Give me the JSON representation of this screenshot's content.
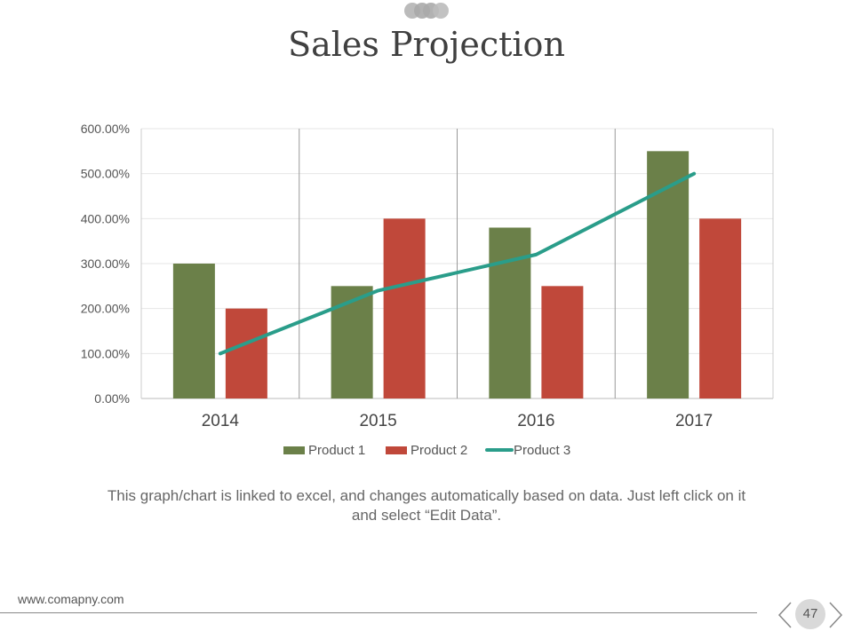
{
  "title": "Sales Projection",
  "caption": "This graph/chart is linked to excel, and changes automatically based on data. Just left click on it and select “Edit Data”.",
  "footer": {
    "url": "www.comapny.com",
    "page_number": "47"
  },
  "colors": {
    "product1": "#6b8049",
    "product2": "#c0483a",
    "product3": "#2a9d8a"
  },
  "chart_data": {
    "type": "bar",
    "categories": [
      "2014",
      "2015",
      "2016",
      "2017"
    ],
    "series": [
      {
        "name": "Product 1",
        "type": "bar",
        "values": [
          300,
          250,
          380,
          550
        ]
      },
      {
        "name": "Product 2",
        "type": "bar",
        "values": [
          200,
          400,
          250,
          400
        ]
      },
      {
        "name": "Product 3",
        "type": "line",
        "values": [
          100,
          240,
          320,
          500
        ]
      }
    ],
    "ylim": [
      0,
      600
    ],
    "yticks": [
      0,
      100,
      200,
      300,
      400,
      500,
      600
    ],
    "ytick_labels": [
      "0.00%",
      "100.00%",
      "200.00%",
      "300.00%",
      "400.00%",
      "500.00%",
      "600.00%"
    ],
    "legend_position": "bottom",
    "grid": true
  }
}
